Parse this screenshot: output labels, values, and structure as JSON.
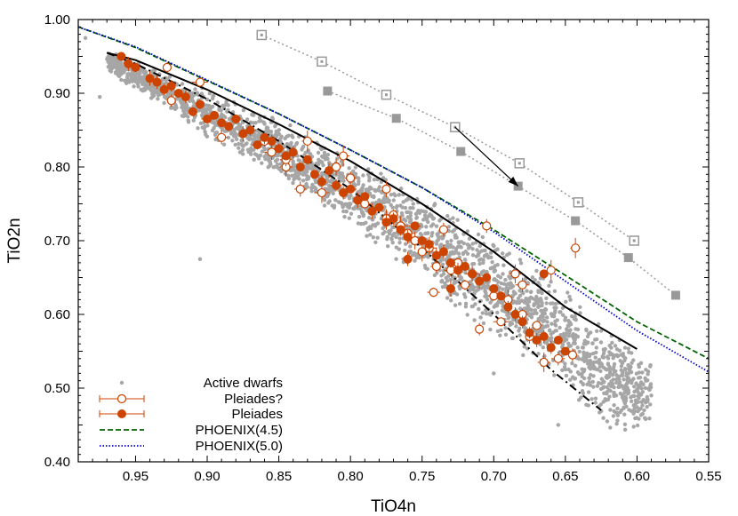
{
  "chart_data": {
    "type": "scatter",
    "xlabel": "TiO4n",
    "ylabel": "TiO2n",
    "xlim": [
      0.99,
      0.55
    ],
    "ylim": [
      0.4,
      1.0
    ],
    "x_reversed": true,
    "x_ticks": [
      "0.95",
      "0.90",
      "0.85",
      "0.80",
      "0.75",
      "0.70",
      "0.65",
      "0.60",
      "0.55"
    ],
    "y_ticks": [
      "0.40",
      "0.50",
      "0.60",
      "0.70",
      "0.80",
      "0.90",
      "1.00"
    ],
    "grid": false,
    "legend_position": "bottom-left",
    "colors": {
      "dwarfs": "#a6a6a6",
      "pleiades": "#cc4400",
      "phoenix45": "#006400",
      "phoenix50": "#0000cc",
      "model_grey": "#999999",
      "fit": "#000000"
    },
    "series": [
      {
        "name": "Active dwarfs",
        "marker": "small-grey-dot",
        "cloud_band": {
          "x_start": 0.97,
          "x_end": 0.59,
          "upper": [
            [
              0.97,
              0.96
            ],
            [
              0.9,
              0.905
            ],
            [
              0.85,
              0.865
            ],
            [
              0.8,
              0.815
            ],
            [
              0.75,
              0.765
            ],
            [
              0.7,
              0.705
            ],
            [
              0.65,
              0.635
            ],
            [
              0.6,
              0.55
            ]
          ],
          "lower": [
            [
              0.97,
              0.93
            ],
            [
              0.9,
              0.84
            ],
            [
              0.85,
              0.785
            ],
            [
              0.8,
              0.72
            ],
            [
              0.75,
              0.645
            ],
            [
              0.7,
              0.565
            ],
            [
              0.65,
              0.5
            ],
            [
              0.62,
              0.44
            ]
          ]
        }
      },
      {
        "name": "Pleiades?",
        "marker": "open-orange-circle-with-errorbar",
        "points": [
          [
            0.928,
            0.935
          ],
          [
            0.925,
            0.89
          ],
          [
            0.905,
            0.915
          ],
          [
            0.89,
            0.84
          ],
          [
            0.86,
            0.835
          ],
          [
            0.855,
            0.82
          ],
          [
            0.845,
            0.8
          ],
          [
            0.835,
            0.77
          ],
          [
            0.83,
            0.835
          ],
          [
            0.82,
            0.765
          ],
          [
            0.81,
            0.8
          ],
          [
            0.805,
            0.815
          ],
          [
            0.8,
            0.785
          ],
          [
            0.79,
            0.75
          ],
          [
            0.775,
            0.73
          ],
          [
            0.77,
            0.735
          ],
          [
            0.765,
            0.72
          ],
          [
            0.76,
            0.71
          ],
          [
            0.755,
            0.7
          ],
          [
            0.75,
            0.685
          ],
          [
            0.745,
            0.69
          ],
          [
            0.74,
            0.665
          ],
          [
            0.735,
            0.715
          ],
          [
            0.73,
            0.66
          ],
          [
            0.725,
            0.67
          ],
          [
            0.72,
            0.64
          ],
          [
            0.715,
            0.655
          ],
          [
            0.71,
            0.58
          ],
          [
            0.705,
            0.72
          ],
          [
            0.7,
            0.625
          ],
          [
            0.695,
            0.59
          ],
          [
            0.69,
            0.62
          ],
          [
            0.685,
            0.655
          ],
          [
            0.68,
            0.64
          ],
          [
            0.68,
            0.6
          ],
          [
            0.675,
            0.57
          ],
          [
            0.67,
            0.585
          ],
          [
            0.665,
            0.535
          ],
          [
            0.66,
            0.66
          ],
          [
            0.655,
            0.54
          ],
          [
            0.645,
            0.545
          ],
          [
            0.643,
            0.69
          ],
          [
            0.742,
            0.63
          ],
          [
            0.775,
            0.77
          ],
          [
            0.845,
            0.81
          ]
        ]
      },
      {
        "name": "Pleiades",
        "marker": "filled-orange-circle-with-errorbar",
        "points": [
          [
            0.96,
            0.95
          ],
          [
            0.955,
            0.94
          ],
          [
            0.95,
            0.935
          ],
          [
            0.94,
            0.92
          ],
          [
            0.935,
            0.915
          ],
          [
            0.93,
            0.905
          ],
          [
            0.925,
            0.91
          ],
          [
            0.92,
            0.9
          ],
          [
            0.915,
            0.895
          ],
          [
            0.91,
            0.875
          ],
          [
            0.905,
            0.885
          ],
          [
            0.9,
            0.865
          ],
          [
            0.895,
            0.87
          ],
          [
            0.89,
            0.86
          ],
          [
            0.885,
            0.855
          ],
          [
            0.88,
            0.865
          ],
          [
            0.875,
            0.845
          ],
          [
            0.87,
            0.85
          ],
          [
            0.865,
            0.83
          ],
          [
            0.86,
            0.84
          ],
          [
            0.855,
            0.835
          ],
          [
            0.85,
            0.825
          ],
          [
            0.845,
            0.815
          ],
          [
            0.84,
            0.82
          ],
          [
            0.835,
            0.8
          ],
          [
            0.83,
            0.81
          ],
          [
            0.825,
            0.79
          ],
          [
            0.82,
            0.78
          ],
          [
            0.815,
            0.795
          ],
          [
            0.81,
            0.775
          ],
          [
            0.805,
            0.765
          ],
          [
            0.8,
            0.77
          ],
          [
            0.795,
            0.755
          ],
          [
            0.79,
            0.76
          ],
          [
            0.785,
            0.74
          ],
          [
            0.78,
            0.745
          ],
          [
            0.775,
            0.725
          ],
          [
            0.77,
            0.73
          ],
          [
            0.765,
            0.715
          ],
          [
            0.76,
            0.705
          ],
          [
            0.755,
            0.72
          ],
          [
            0.75,
            0.7
          ],
          [
            0.745,
            0.695
          ],
          [
            0.74,
            0.68
          ],
          [
            0.735,
            0.685
          ],
          [
            0.73,
            0.67
          ],
          [
            0.725,
            0.66
          ],
          [
            0.72,
            0.665
          ],
          [
            0.715,
            0.655
          ],
          [
            0.71,
            0.645
          ],
          [
            0.705,
            0.65
          ],
          [
            0.7,
            0.635
          ],
          [
            0.695,
            0.625
          ],
          [
            0.69,
            0.61
          ],
          [
            0.685,
            0.6
          ],
          [
            0.68,
            0.59
          ],
          [
            0.675,
            0.575
          ],
          [
            0.67,
            0.565
          ],
          [
            0.665,
            0.57
          ],
          [
            0.66,
            0.555
          ],
          [
            0.655,
            0.565
          ],
          [
            0.65,
            0.55
          ],
          [
            0.665,
            0.655
          ],
          [
            0.73,
            0.635
          ],
          [
            0.76,
            0.675
          ]
        ]
      },
      {
        "name": "PHOENIX(4.5)",
        "style": "dashed",
        "points": [
          [
            0.99,
            0.99
          ],
          [
            0.95,
            0.962
          ],
          [
            0.9,
            0.917
          ],
          [
            0.85,
            0.872
          ],
          [
            0.8,
            0.823
          ],
          [
            0.75,
            0.772
          ],
          [
            0.7,
            0.715
          ],
          [
            0.65,
            0.653
          ],
          [
            0.6,
            0.59
          ],
          [
            0.55,
            0.54
          ]
        ]
      },
      {
        "name": "PHOENIX(5.0)",
        "style": "dotted",
        "points": [
          [
            0.99,
            0.99
          ],
          [
            0.95,
            0.963
          ],
          [
            0.9,
            0.918
          ],
          [
            0.85,
            0.872
          ],
          [
            0.8,
            0.823
          ],
          [
            0.75,
            0.772
          ],
          [
            0.7,
            0.712
          ],
          [
            0.65,
            0.645
          ],
          [
            0.6,
            0.578
          ],
          [
            0.55,
            0.522
          ]
        ]
      }
    ],
    "fit_curves": [
      {
        "style": "solid",
        "points": [
          [
            0.97,
            0.955
          ],
          [
            0.95,
            0.945
          ],
          [
            0.9,
            0.905
          ],
          [
            0.85,
            0.858
          ],
          [
            0.8,
            0.808
          ],
          [
            0.75,
            0.75
          ],
          [
            0.7,
            0.685
          ],
          [
            0.65,
            0.61
          ],
          [
            0.6,
            0.553
          ]
        ]
      },
      {
        "style": "dash-dot",
        "points": [
          [
            0.97,
            0.955
          ],
          [
            0.95,
            0.94
          ],
          [
            0.9,
            0.892
          ],
          [
            0.85,
            0.835
          ],
          [
            0.8,
            0.77
          ],
          [
            0.75,
            0.69
          ],
          [
            0.7,
            0.6
          ],
          [
            0.66,
            0.525
          ],
          [
            0.625,
            0.47
          ]
        ]
      }
    ],
    "model_tracks": [
      {
        "marker": "open-square",
        "points": [
          [
            0.862,
            0.979
          ],
          [
            0.82,
            0.943
          ],
          [
            0.775,
            0.898
          ],
          [
            0.727,
            0.854
          ],
          [
            0.682,
            0.805
          ],
          [
            0.641,
            0.752
          ],
          [
            0.602,
            0.7
          ]
        ]
      },
      {
        "marker": "filled-square",
        "points": [
          [
            0.816,
            0.903
          ],
          [
            0.768,
            0.866
          ],
          [
            0.723,
            0.821
          ],
          [
            0.683,
            0.774
          ],
          [
            0.643,
            0.727
          ],
          [
            0.606,
            0.677
          ],
          [
            0.573,
            0.626
          ]
        ]
      }
    ],
    "arrow": {
      "from": [
        0.727,
        0.854
      ],
      "to": [
        0.683,
        0.774
      ]
    }
  }
}
